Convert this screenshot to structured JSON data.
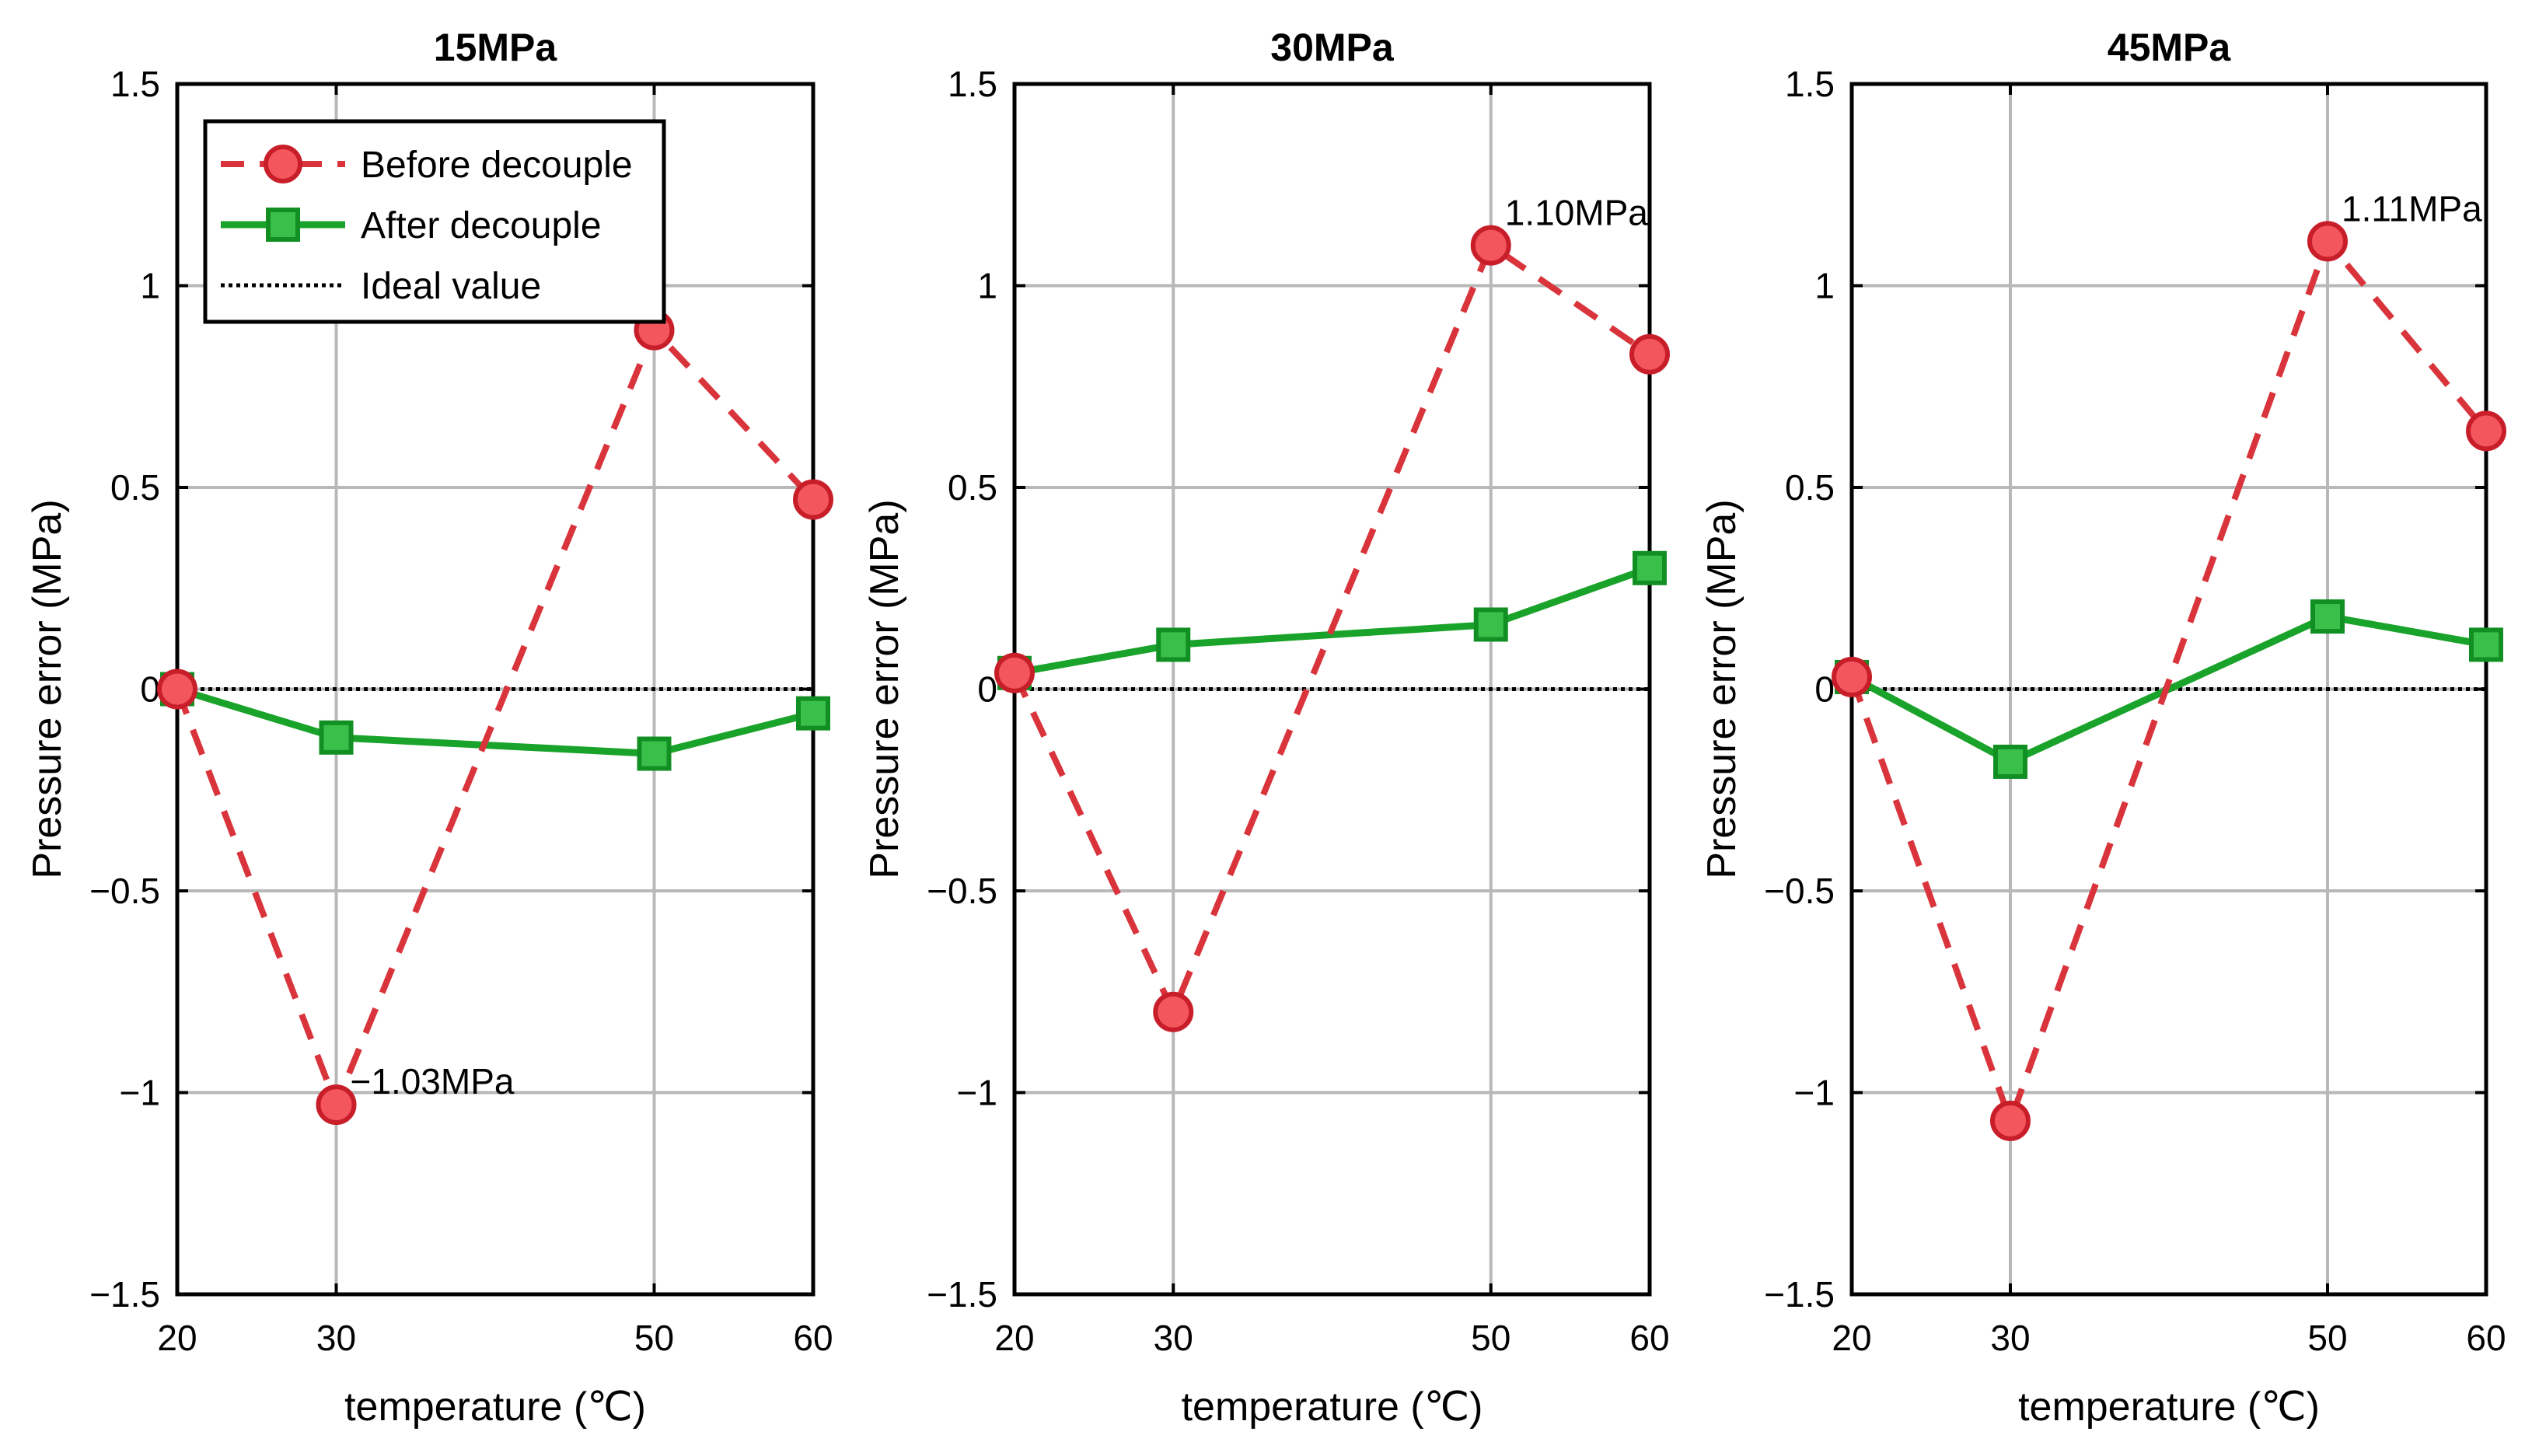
{
  "chart_data": [
    {
      "type": "line",
      "title": "15MPa",
      "xlabel": "temperature (℃)",
      "ylabel": "Pressure error (MPa)",
      "x": [
        20,
        30,
        50,
        60
      ],
      "xticks": [
        "20",
        "30",
        "50",
        "60"
      ],
      "yticks": [
        "−1.5",
        "−1",
        "−0.5",
        "0",
        "0.5",
        "1",
        "1.5"
      ],
      "ylim": [
        -1.5,
        1.5
      ],
      "grid": true,
      "series": [
        {
          "name": "Before decouple",
          "values": [
            0.0,
            -1.03,
            0.89,
            0.47
          ],
          "color": "#d9343b",
          "marker": "circle",
          "style": "dashed"
        },
        {
          "name": "After decouple",
          "values": [
            0.0,
            -0.12,
            -0.16,
            -0.06
          ],
          "color": "#1aa32a",
          "marker": "square",
          "style": "solid"
        },
        {
          "name": "Ideal value",
          "values": [
            0,
            0,
            0,
            0
          ],
          "color": "#000000",
          "style": "dotted"
        }
      ],
      "annotations": [
        {
          "text": "−1.03MPa",
          "x": 30,
          "y": -1.03
        }
      ],
      "legend": {
        "position": "top-left",
        "entries": [
          "Before decouple",
          "After decouple",
          "Ideal value"
        ]
      }
    },
    {
      "type": "line",
      "title": "30MPa",
      "xlabel": "temperature (℃)",
      "ylabel": "Pressure error (MPa)",
      "x": [
        20,
        30,
        50,
        60
      ],
      "xticks": [
        "20",
        "30",
        "50",
        "60"
      ],
      "yticks": [
        "−1.5",
        "−1",
        "−0.5",
        "0",
        "0.5",
        "1",
        "1.5"
      ],
      "ylim": [
        -1.5,
        1.5
      ],
      "grid": true,
      "series": [
        {
          "name": "Before decouple",
          "values": [
            0.04,
            -0.8,
            1.1,
            0.83
          ],
          "color": "#d9343b",
          "marker": "circle",
          "style": "dashed"
        },
        {
          "name": "After decouple",
          "values": [
            0.04,
            0.11,
            0.16,
            0.3
          ],
          "color": "#1aa32a",
          "marker": "square",
          "style": "solid"
        },
        {
          "name": "Ideal value",
          "values": [
            0,
            0,
            0,
            0
          ],
          "color": "#000000",
          "style": "dotted"
        }
      ],
      "annotations": [
        {
          "text": "1.10MPa",
          "x": 50,
          "y": 1.1
        }
      ]
    },
    {
      "type": "line",
      "title": "45MPa",
      "xlabel": "temperature (℃)",
      "ylabel": "Pressure error (MPa)",
      "x": [
        20,
        30,
        50,
        60
      ],
      "xticks": [
        "20",
        "30",
        "50",
        "60"
      ],
      "yticks": [
        "−1.5",
        "−1",
        "−0.5",
        "0",
        "0.5",
        "1",
        "1.5"
      ],
      "ylim": [
        -1.5,
        1.5
      ],
      "grid": true,
      "series": [
        {
          "name": "Before decouple",
          "values": [
            0.03,
            -1.07,
            1.11,
            0.64
          ],
          "color": "#d9343b",
          "marker": "circle",
          "style": "dashed"
        },
        {
          "name": "After decouple",
          "values": [
            0.03,
            -0.18,
            0.18,
            0.11
          ],
          "color": "#1aa32a",
          "marker": "square",
          "style": "solid"
        },
        {
          "name": "Ideal value",
          "values": [
            0,
            0,
            0,
            0
          ],
          "color": "#000000",
          "style": "dotted"
        }
      ],
      "annotations": [
        {
          "text": "1.11MPa",
          "x": 50,
          "y": 1.11
        }
      ]
    }
  ]
}
